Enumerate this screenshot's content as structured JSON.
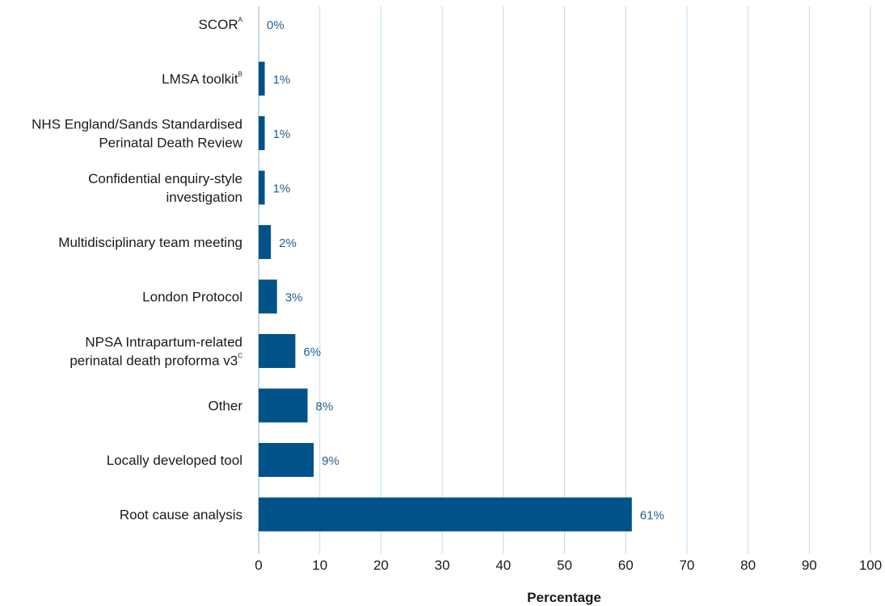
{
  "chart_data": {
    "type": "bar",
    "orientation": "horizontal",
    "xlabel": "Percentage",
    "xlim": [
      0,
      100
    ],
    "xticks": [
      0,
      10,
      20,
      30,
      40,
      50,
      60,
      70,
      80,
      90,
      100
    ],
    "grid": "vertical",
    "bar_color": "#005289",
    "label_color": "#1f5f95",
    "grid_color": "#bcdcef",
    "categories": [
      {
        "lines": [
          "SCOR"
        ],
        "sup": "A",
        "value": 0,
        "label": "0%"
      },
      {
        "lines": [
          "LMSA toolkit"
        ],
        "sup": "B",
        "value": 1,
        "label": "1%"
      },
      {
        "lines": [
          "NHS England/Sands Standardised",
          "Perinatal Death Review"
        ],
        "sup": "",
        "value": 1,
        "label": "1%"
      },
      {
        "lines": [
          "Confidential enquiry-style",
          "investigation"
        ],
        "sup": "",
        "value": 1,
        "label": "1%"
      },
      {
        "lines": [
          "Multidisciplinary team meeting"
        ],
        "sup": "",
        "value": 2,
        "label": "2%"
      },
      {
        "lines": [
          "London Protocol"
        ],
        "sup": "",
        "value": 3,
        "label": "3%"
      },
      {
        "lines": [
          "NPSA Intrapartum-related",
          "perinatal death proforma v3"
        ],
        "sup": "C",
        "value": 6,
        "label": "6%"
      },
      {
        "lines": [
          "Other"
        ],
        "sup": "",
        "value": 8,
        "label": "8%"
      },
      {
        "lines": [
          "Locally developed tool"
        ],
        "sup": "",
        "value": 9,
        "label": "9%"
      },
      {
        "lines": [
          "Root cause analysis"
        ],
        "sup": "",
        "value": 61,
        "label": "61%"
      }
    ]
  }
}
